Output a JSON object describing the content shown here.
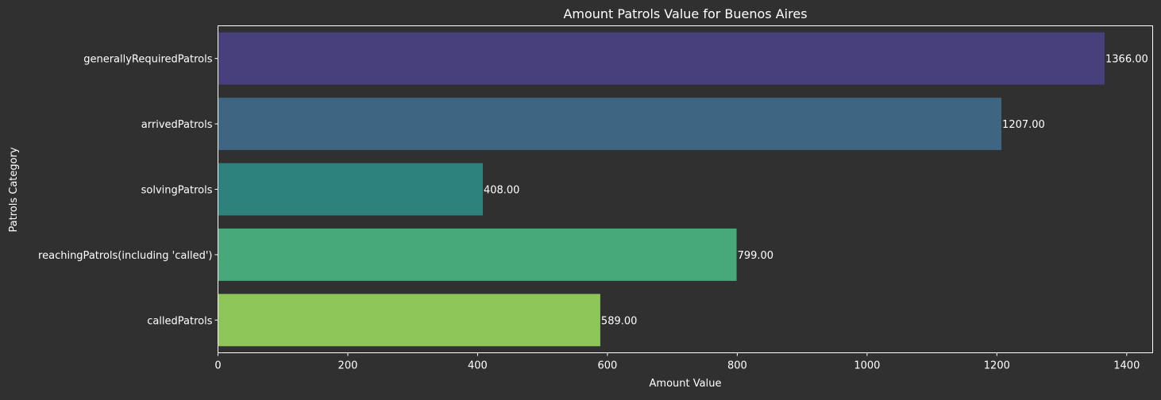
{
  "chart_data": {
    "type": "bar",
    "orientation": "horizontal",
    "title": "Amount Patrols Value for Buenos Aires",
    "xlabel": "Amount Value",
    "ylabel": "Patrols Category",
    "xlim": [
      0,
      1440
    ],
    "xticks": [
      0,
      200,
      400,
      600,
      800,
      1000,
      1200,
      1400
    ],
    "grid": false,
    "categories": [
      "generallyRequiredPatrols",
      "arrivedPatrols",
      "solvingPatrols",
      "reachingPatrols(including 'called')",
      "calledPatrols"
    ],
    "values": [
      1366,
      1207,
      408,
      799,
      589
    ],
    "value_labels": [
      "1366.00",
      "1207.00",
      "408.00",
      "799.00",
      "589.00"
    ],
    "colors": [
      "#48407c",
      "#3e6683",
      "#2e827e",
      "#47a879",
      "#8ec558"
    ]
  },
  "style": {
    "background": "#303030",
    "axis_color": "#ffffff",
    "text_color": "#ffffff"
  }
}
